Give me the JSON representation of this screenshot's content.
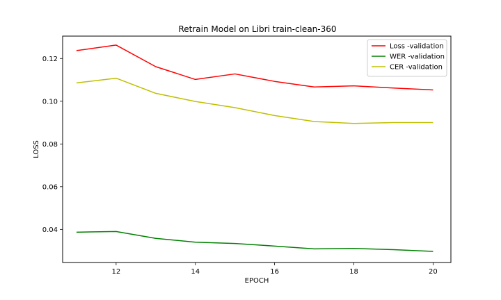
{
  "chart_data": {
    "type": "line",
    "title": "Retrain Model on Libri train-clean-360",
    "xlabel": "EPOCH",
    "ylabel": "LOSS",
    "x": [
      11,
      12,
      13,
      14,
      15,
      16,
      17,
      18,
      19,
      20
    ],
    "xlim": [
      10.65,
      20.45
    ],
    "ylim": [
      0.0245,
      0.1305
    ],
    "xticks": [
      12,
      14,
      16,
      18,
      20
    ],
    "yticks": [
      0.04,
      0.06,
      0.08,
      0.1,
      0.12
    ],
    "ytick_labels": [
      "0.04",
      "0.06",
      "0.08",
      "0.10",
      "0.12"
    ],
    "grid": false,
    "legend_position": "top-right",
    "series": [
      {
        "name": "Loss -validation",
        "color": "#ff0000",
        "values": [
          0.1237,
          0.1263,
          0.1162,
          0.1102,
          0.1128,
          0.1093,
          0.1067,
          0.1072,
          0.1062,
          0.1053
        ]
      },
      {
        "name": "WER -validation",
        "color": "#008000",
        "values": [
          0.0387,
          0.039,
          0.0358,
          0.034,
          0.0334,
          0.0322,
          0.0309,
          0.0311,
          0.0305,
          0.0297
        ]
      },
      {
        "name": "CER -validation",
        "color": "#bfbf00",
        "values": [
          0.1086,
          0.1108,
          0.1037,
          0.0999,
          0.097,
          0.0933,
          0.0905,
          0.0896,
          0.09,
          0.09
        ]
      }
    ]
  }
}
